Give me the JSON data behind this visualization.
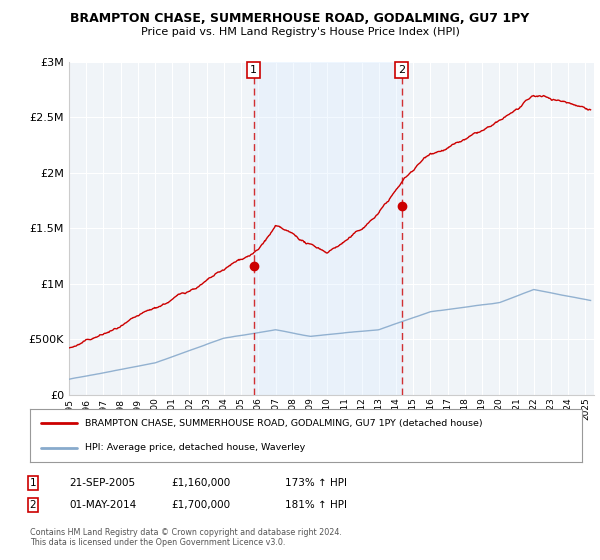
{
  "title_line1": "BRAMPTON CHASE, SUMMERHOUSE ROAD, GODALMING, GU7 1PY",
  "title_line2": "Price paid vs. HM Land Registry's House Price Index (HPI)",
  "ylabel_ticks": [
    "£0",
    "£500K",
    "£1M",
    "£1.5M",
    "£2M",
    "£2.5M",
    "£3M"
  ],
  "ytick_values": [
    0,
    500000,
    1000000,
    1500000,
    2000000,
    2500000,
    3000000
  ],
  "ylim": [
    0,
    3000000
  ],
  "xlim_start": 1995.0,
  "xlim_end": 2025.5,
  "purchase1_year": 2005.72,
  "purchase1_label": "1",
  "purchase1_value": 1160000,
  "purchase1_date": "21-SEP-2005",
  "purchase1_hpi": "173% ↑ HPI",
  "purchase2_year": 2014.33,
  "purchase2_label": "2",
  "purchase2_value": 1700000,
  "purchase2_date": "01-MAY-2014",
  "purchase2_hpi": "181% ↑ HPI",
  "line_color_property": "#cc0000",
  "line_color_hpi": "#88aacc",
  "shaded_color": "#ddeeff",
  "vline_color": "#cc0000",
  "legend_label_property": "BRAMPTON CHASE, SUMMERHOUSE ROAD, GODALMING, GU7 1PY (detached house)",
  "legend_label_hpi": "HPI: Average price, detached house, Waverley",
  "footnote": "Contains HM Land Registry data © Crown copyright and database right 2024.\nThis data is licensed under the Open Government Licence v3.0.",
  "xtick_years": [
    1995,
    1996,
    1997,
    1998,
    1999,
    2000,
    2001,
    2002,
    2003,
    2004,
    2005,
    2006,
    2007,
    2008,
    2009,
    2010,
    2011,
    2012,
    2013,
    2014,
    2015,
    2016,
    2017,
    2018,
    2019,
    2020,
    2021,
    2022,
    2023,
    2024,
    2025
  ],
  "background_color": "#ffffff",
  "plot_bg_color": "#f0f4f8"
}
